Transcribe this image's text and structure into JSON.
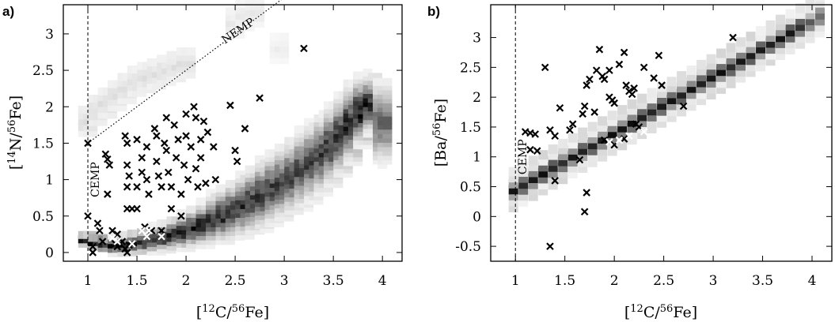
{
  "chart_data": [
    {
      "panel_label": "a)",
      "type": "heatmap",
      "xlabel": {
        "pre": "[",
        "sup": "12",
        "mid": "C/",
        "sup2": "56",
        "post": "Fe]"
      },
      "ylabel": {
        "pre": "[",
        "sup": "14",
        "mid": "N/",
        "sup2": "56",
        "post": "Fe]"
      },
      "xlim": [
        0.75,
        4.2
      ],
      "ylim": [
        -0.12,
        3.4
      ],
      "xticks": [
        "1",
        "1.5",
        "2",
        "2.5",
        "3",
        "3.5",
        "4"
      ],
      "yticks": [
        "0",
        "0.5",
        "1",
        "1.5",
        "2",
        "2.5",
        "3"
      ],
      "grid": false,
      "annotations": [
        {
          "text": "CEMP",
          "x": 1.0,
          "y": 1.0,
          "rotate": -90
        },
        {
          "text": "NEMP",
          "x": 2.55,
          "y": 3.0,
          "rotate": -34
        }
      ],
      "reference_lines": [
        {
          "kind": "vertical",
          "x": 1.0,
          "style": "dashed"
        },
        {
          "kind": "segment",
          "from": [
            1.0,
            1.5
          ],
          "to": [
            3.0,
            3.5
          ],
          "style": "dotted"
        }
      ],
      "density_band": [
        [
          1.0,
          0.18,
          0.06,
          0.95
        ],
        [
          1.1,
          0.14,
          0.07,
          0.95
        ],
        [
          1.2,
          0.12,
          0.08,
          0.95
        ],
        [
          1.3,
          0.11,
          0.09,
          0.95
        ],
        [
          1.4,
          0.12,
          0.1,
          0.95
        ],
        [
          1.5,
          0.14,
          0.11,
          0.95
        ],
        [
          1.6,
          0.16,
          0.12,
          0.92
        ],
        [
          1.7,
          0.19,
          0.13,
          0.92
        ],
        [
          1.8,
          0.22,
          0.14,
          0.92
        ],
        [
          1.9,
          0.26,
          0.16,
          0.92
        ],
        [
          2.0,
          0.3,
          0.18,
          0.9
        ],
        [
          2.1,
          0.35,
          0.2,
          0.9
        ],
        [
          2.2,
          0.4,
          0.22,
          0.9
        ],
        [
          2.3,
          0.46,
          0.25,
          0.88
        ],
        [
          2.4,
          0.52,
          0.27,
          0.88
        ],
        [
          2.5,
          0.58,
          0.29,
          0.86
        ],
        [
          2.6,
          0.65,
          0.31,
          0.85
        ],
        [
          2.7,
          0.72,
          0.33,
          0.84
        ],
        [
          2.8,
          0.8,
          0.35,
          0.83
        ],
        [
          2.9,
          0.88,
          0.36,
          0.82
        ],
        [
          3.0,
          0.96,
          0.37,
          0.8
        ],
        [
          3.1,
          1.05,
          0.38,
          0.78
        ],
        [
          3.2,
          1.15,
          0.39,
          0.78
        ],
        [
          3.3,
          1.25,
          0.4,
          0.78
        ],
        [
          3.4,
          1.36,
          0.4,
          0.8
        ],
        [
          3.5,
          1.48,
          0.41,
          0.82
        ],
        [
          3.6,
          1.62,
          0.41,
          0.85
        ],
        [
          3.7,
          1.78,
          0.4,
          0.9
        ],
        [
          3.8,
          1.95,
          0.35,
          0.95
        ],
        [
          3.9,
          2.05,
          0.3,
          0.9
        ],
        [
          4.0,
          1.8,
          0.45,
          0.6
        ]
      ],
      "faint_band": [
        [
          1.0,
          1.8,
          0.15
        ],
        [
          1.1,
          1.95,
          0.15
        ],
        [
          1.2,
          2.05,
          0.15
        ],
        [
          1.3,
          2.15,
          0.15
        ],
        [
          1.4,
          2.25,
          0.14
        ],
        [
          1.5,
          2.35,
          0.14
        ],
        [
          1.6,
          2.4,
          0.14
        ],
        [
          1.7,
          2.45,
          0.14
        ],
        [
          1.8,
          2.5,
          0.14
        ],
        [
          1.9,
          2.55,
          0.14
        ],
        [
          2.0,
          2.6,
          0.14
        ],
        [
          2.5,
          3.15,
          0.1
        ],
        [
          2.6,
          3.25,
          0.1
        ],
        [
          2.7,
          3.3,
          0.1
        ],
        [
          2.95,
          2.8,
          0.08
        ]
      ],
      "points": [
        [
          1.0,
          1.5
        ],
        [
          1.0,
          0.5
        ],
        [
          1.05,
          0.08
        ],
        [
          1.05,
          0.0
        ],
        [
          1.1,
          0.4
        ],
        [
          1.12,
          0.3
        ],
        [
          1.15,
          0.15
        ],
        [
          1.18,
          1.35
        ],
        [
          1.2,
          0.8
        ],
        [
          1.2,
          1.28
        ],
        [
          1.22,
          1.2
        ],
        [
          1.25,
          0.3
        ],
        [
          1.28,
          0.12
        ],
        [
          1.3,
          0.25
        ],
        [
          1.3,
          0.08
        ],
        [
          1.35,
          0.15
        ],
        [
          1.38,
          0.05
        ],
        [
          1.4,
          0.0
        ],
        [
          1.42,
          0.1
        ],
        [
          1.38,
          1.6
        ],
        [
          1.4,
          1.5
        ],
        [
          1.4,
          1.2
        ],
        [
          1.42,
          1.05
        ],
        [
          1.4,
          0.9
        ],
        [
          1.45,
          0.6
        ],
        [
          1.4,
          0.6
        ],
        [
          1.5,
          1.55
        ],
        [
          1.5,
          0.6
        ],
        [
          1.55,
          1.3
        ],
        [
          1.55,
          1.1
        ],
        [
          1.5,
          0.9
        ],
        [
          1.58,
          0.35
        ],
        [
          1.6,
          1.45
        ],
        [
          1.6,
          1.0
        ],
        [
          1.62,
          0.8
        ],
        [
          1.65,
          0.3
        ],
        [
          1.68,
          1.7
        ],
        [
          1.7,
          1.6
        ],
        [
          1.7,
          1.25
        ],
        [
          1.72,
          1.05
        ],
        [
          1.75,
          0.9
        ],
        [
          1.75,
          0.3
        ],
        [
          1.78,
          1.5
        ],
        [
          1.8,
          1.85
        ],
        [
          1.8,
          1.4
        ],
        [
          1.82,
          1.1
        ],
        [
          1.85,
          0.9
        ],
        [
          1.85,
          0.6
        ],
        [
          1.88,
          1.75
        ],
        [
          1.9,
          1.3
        ],
        [
          1.92,
          1.55
        ],
        [
          1.95,
          0.8
        ],
        [
          1.95,
          0.5
        ],
        [
          1.98,
          1.2
        ],
        [
          2.0,
          1.9
        ],
        [
          2.0,
          1.6
        ],
        [
          2.02,
          1.0
        ],
        [
          2.05,
          1.45
        ],
        [
          2.08,
          2.0
        ],
        [
          2.1,
          1.85
        ],
        [
          2.1,
          1.15
        ],
        [
          2.12,
          0.9
        ],
        [
          2.15,
          1.3
        ],
        [
          2.15,
          1.55
        ],
        [
          2.18,
          1.8
        ],
        [
          2.2,
          0.95
        ],
        [
          2.22,
          1.65
        ],
        [
          2.28,
          1.45
        ],
        [
          2.3,
          1.0
        ],
        [
          2.45,
          2.02
        ],
        [
          2.5,
          1.4
        ],
        [
          2.52,
          1.25
        ],
        [
          2.6,
          1.7
        ],
        [
          2.75,
          2.12
        ],
        [
          3.2,
          2.8
        ]
      ],
      "white_points": [
        [
          1.25,
          0.2
        ],
        [
          1.3,
          0.15
        ],
        [
          1.55,
          0.3
        ],
        [
          1.6,
          0.22
        ],
        [
          1.62,
          0.3
        ],
        [
          1.75,
          0.22
        ],
        [
          1.45,
          0.12
        ]
      ]
    },
    {
      "panel_label": "b)",
      "type": "heatmap",
      "xlabel": {
        "pre": "[",
        "sup": "12",
        "mid": "C/",
        "sup2": "56",
        "post": "Fe]"
      },
      "ylabel": {
        "pre": "[Ba/",
        "sup": "56",
        "mid": "",
        "sup2": "",
        "post": "Fe]"
      },
      "xlim": [
        0.75,
        4.2
      ],
      "ylim": [
        -0.75,
        3.55
      ],
      "xticks": [
        "1",
        "1.5",
        "2",
        "2.5",
        "3",
        "3.5",
        "4"
      ],
      "yticks": [
        "-0.5",
        "0",
        "0.5",
        "1",
        "1.5",
        "2",
        "2.5",
        "3"
      ],
      "grid": false,
      "annotations": [
        {
          "text": "CEMP",
          "x": 1.0,
          "y": 1.0,
          "rotate": -90
        }
      ],
      "reference_lines": [
        {
          "kind": "vertical",
          "x": 1.0,
          "style": "dashed"
        }
      ],
      "diagonal_band": {
        "x_start": 0.98,
        "x_end": 4.1,
        "y_start": 0.45,
        "y_end": 3.4
      },
      "points": [
        [
          1.1,
          1.42
        ],
        [
          1.15,
          1.4
        ],
        [
          1.2,
          1.38
        ],
        [
          1.15,
          1.12
        ],
        [
          1.22,
          1.1
        ],
        [
          1.3,
          2.5
        ],
        [
          1.35,
          1.45
        ],
        [
          1.4,
          1.35
        ],
        [
          1.4,
          0.6
        ],
        [
          1.45,
          1.82
        ],
        [
          1.55,
          1.45
        ],
        [
          1.58,
          1.55
        ],
        [
          1.65,
          0.95
        ],
        [
          1.68,
          1.72
        ],
        [
          1.7,
          1.85
        ],
        [
          1.72,
          2.2
        ],
        [
          1.75,
          2.3
        ],
        [
          1.72,
          0.4
        ],
        [
          1.7,
          0.08
        ],
        [
          1.35,
          -0.5
        ],
        [
          1.8,
          1.75
        ],
        [
          1.85,
          2.8
        ],
        [
          1.82,
          2.45
        ],
        [
          1.88,
          2.35
        ],
        [
          1.9,
          2.3
        ],
        [
          1.95,
          2.45
        ],
        [
          1.95,
          2.0
        ],
        [
          1.98,
          1.95
        ],
        [
          2.0,
          1.9
        ],
        [
          2.05,
          2.55
        ],
        [
          2.1,
          2.75
        ],
        [
          2.12,
          2.2
        ],
        [
          2.15,
          2.1
        ],
        [
          2.18,
          2.05
        ],
        [
          2.2,
          2.15
        ],
        [
          2.25,
          1.5
        ],
        [
          2.3,
          2.5
        ],
        [
          2.4,
          2.32
        ],
        [
          2.45,
          2.7
        ],
        [
          2.48,
          2.2
        ],
        [
          1.9,
          1.28
        ],
        [
          2.0,
          1.2
        ],
        [
          2.1,
          1.3
        ],
        [
          2.7,
          1.85
        ],
        [
          3.2,
          3.0
        ],
        [
          2.22,
          1.55
        ]
      ],
      "white_points": [
        [
          1.95,
          1.25
        ],
        [
          2.05,
          1.28
        ],
        [
          2.15,
          1.35
        ],
        [
          2.3,
          1.42
        ]
      ]
    }
  ]
}
